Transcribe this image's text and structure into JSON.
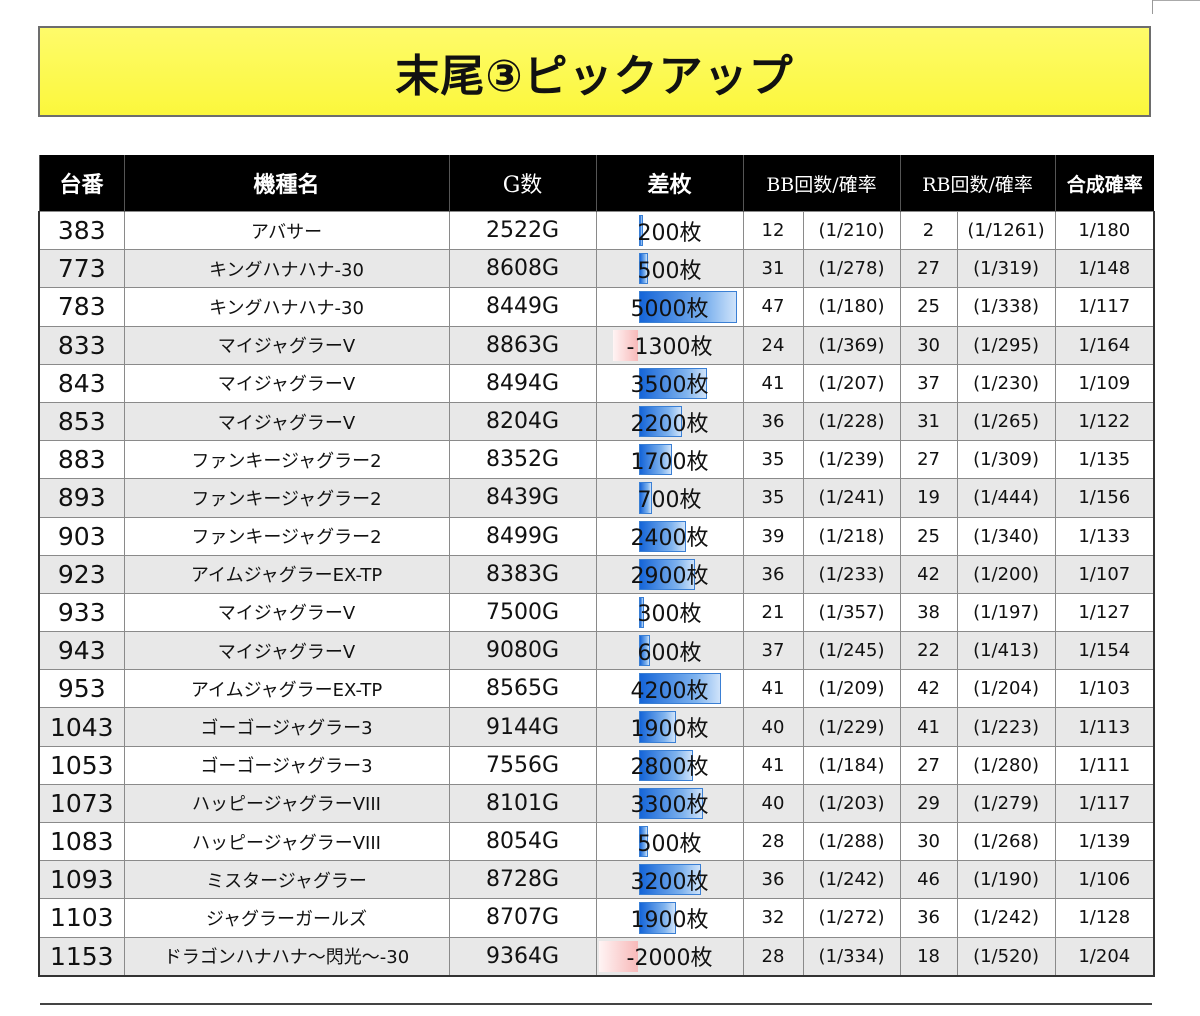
{
  "title": "末尾③ピックアップ",
  "headers": {
    "machine_no": "台番",
    "machine_name": "機種名",
    "games": "G数",
    "diff": "差枚",
    "bb": "BB回数/確率",
    "rb": "RB回数/確率",
    "combined": "合成確率"
  },
  "rows": [
    {
      "no": "383",
      "name": "アバサー",
      "games": "2522G",
      "diff": "200枚",
      "diff_value": 200,
      "bb": "12",
      "bb_rate": "(1/210)",
      "rb": "2",
      "rb_rate": "(1/1261)",
      "combined": "1/180"
    },
    {
      "no": "773",
      "name": "キングハナハナ-30",
      "games": "8608G",
      "diff": "500枚",
      "diff_value": 500,
      "bb": "31",
      "bb_rate": "(1/278)",
      "rb": "27",
      "rb_rate": "(1/319)",
      "combined": "1/148"
    },
    {
      "no": "783",
      "name": "キングハナハナ-30",
      "games": "8449G",
      "diff": "5000枚",
      "diff_value": 5000,
      "bb": "47",
      "bb_rate": "(1/180)",
      "rb": "25",
      "rb_rate": "(1/338)",
      "combined": "1/117"
    },
    {
      "no": "833",
      "name": "マイジャグラーV",
      "games": "8863G",
      "diff": "-1300枚",
      "diff_value": -1300,
      "bb": "24",
      "bb_rate": "(1/369)",
      "rb": "30",
      "rb_rate": "(1/295)",
      "combined": "1/164"
    },
    {
      "no": "843",
      "name": "マイジャグラーV",
      "games": "8494G",
      "diff": "3500枚",
      "diff_value": 3500,
      "bb": "41",
      "bb_rate": "(1/207)",
      "rb": "37",
      "rb_rate": "(1/230)",
      "combined": "1/109"
    },
    {
      "no": "853",
      "name": "マイジャグラーV",
      "games": "8204G",
      "diff": "2200枚",
      "diff_value": 2200,
      "bb": "36",
      "bb_rate": "(1/228)",
      "rb": "31",
      "rb_rate": "(1/265)",
      "combined": "1/122"
    },
    {
      "no": "883",
      "name": "ファンキージャグラー2",
      "games": "8352G",
      "diff": "1700枚",
      "diff_value": 1700,
      "bb": "35",
      "bb_rate": "(1/239)",
      "rb": "27",
      "rb_rate": "(1/309)",
      "combined": "1/135"
    },
    {
      "no": "893",
      "name": "ファンキージャグラー2",
      "games": "8439G",
      "diff": "700枚",
      "diff_value": 700,
      "bb": "35",
      "bb_rate": "(1/241)",
      "rb": "19",
      "rb_rate": "(1/444)",
      "combined": "1/156"
    },
    {
      "no": "903",
      "name": "ファンキージャグラー2",
      "games": "8499G",
      "diff": "2400枚",
      "diff_value": 2400,
      "bb": "39",
      "bb_rate": "(1/218)",
      "rb": "25",
      "rb_rate": "(1/340)",
      "combined": "1/133"
    },
    {
      "no": "923",
      "name": "アイムジャグラーEX-TP",
      "games": "8383G",
      "diff": "2900枚",
      "diff_value": 2900,
      "bb": "36",
      "bb_rate": "(1/233)",
      "rb": "42",
      "rb_rate": "(1/200)",
      "combined": "1/107"
    },
    {
      "no": "933",
      "name": "マイジャグラーV",
      "games": "7500G",
      "diff": "300枚",
      "diff_value": 300,
      "bb": "21",
      "bb_rate": "(1/357)",
      "rb": "38",
      "rb_rate": "(1/197)",
      "combined": "1/127"
    },
    {
      "no": "943",
      "name": "マイジャグラーV",
      "games": "9080G",
      "diff": "600枚",
      "diff_value": 600,
      "bb": "37",
      "bb_rate": "(1/245)",
      "rb": "22",
      "rb_rate": "(1/413)",
      "combined": "1/154"
    },
    {
      "no": "953",
      "name": "アイムジャグラーEX-TP",
      "games": "8565G",
      "diff": "4200枚",
      "diff_value": 4200,
      "bb": "41",
      "bb_rate": "(1/209)",
      "rb": "42",
      "rb_rate": "(1/204)",
      "combined": "1/103"
    },
    {
      "no": "1043",
      "name": "ゴーゴージャグラー3",
      "games": "9144G",
      "diff": "1900枚",
      "diff_value": 1900,
      "bb": "40",
      "bb_rate": "(1/229)",
      "rb": "41",
      "rb_rate": "(1/223)",
      "combined": "1/113"
    },
    {
      "no": "1053",
      "name": "ゴーゴージャグラー3",
      "games": "7556G",
      "diff": "2800枚",
      "diff_value": 2800,
      "bb": "41",
      "bb_rate": "(1/184)",
      "rb": "27",
      "rb_rate": "(1/280)",
      "combined": "1/111"
    },
    {
      "no": "1073",
      "name": "ハッピージャグラーVIII",
      "games": "8101G",
      "diff": "3300枚",
      "diff_value": 3300,
      "bb": "40",
      "bb_rate": "(1/203)",
      "rb": "29",
      "rb_rate": "(1/279)",
      "combined": "1/117"
    },
    {
      "no": "1083",
      "name": "ハッピージャグラーVIII",
      "games": "8054G",
      "diff": "500枚",
      "diff_value": 500,
      "bb": "28",
      "bb_rate": "(1/288)",
      "rb": "30",
      "rb_rate": "(1/268)",
      "combined": "1/139"
    },
    {
      "no": "1093",
      "name": "ミスタージャグラー",
      "games": "8728G",
      "diff": "3200枚",
      "diff_value": 3200,
      "bb": "36",
      "bb_rate": "(1/242)",
      "rb": "46",
      "rb_rate": "(1/190)",
      "combined": "1/106"
    },
    {
      "no": "1103",
      "name": "ジャグラーガールズ",
      "games": "8707G",
      "diff": "1900枚",
      "diff_value": 1900,
      "bb": "32",
      "bb_rate": "(1/272)",
      "rb": "36",
      "rb_rate": "(1/242)",
      "combined": "1/128"
    },
    {
      "no": "1153",
      "name": "ドラゴンハナハナ～閃光～-30",
      "games": "9364G",
      "diff": "-2000枚",
      "diff_value": -2000,
      "bb": "28",
      "bb_rate": "(1/334)",
      "rb": "18",
      "rb_rate": "(1/520)",
      "combined": "1/204"
    }
  ],
  "colors": {
    "banner": "#fbf73c",
    "header_bg": "#000000",
    "positive_bar": "#1565d8",
    "negative_bar": "#f7b9b9"
  }
}
